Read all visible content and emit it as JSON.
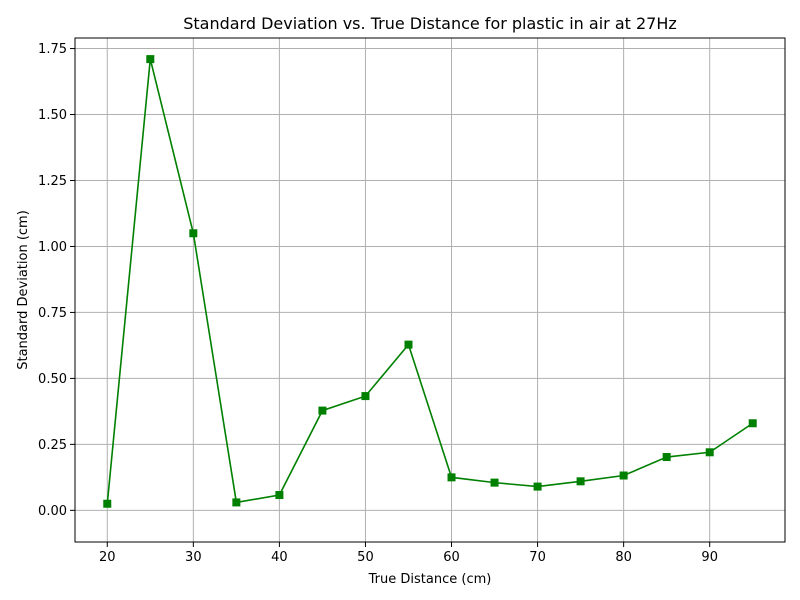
{
  "chart_data": {
    "type": "line",
    "title": "Standard Deviation vs. True Distance for plastic in air at 27Hz",
    "xlabel": "True Distance (cm)",
    "ylabel": "Standard Deviation (cm)",
    "xlim": [
      16.25,
      98.75
    ],
    "ylim": [
      -0.12,
      1.79
    ],
    "xticks": [
      20,
      30,
      40,
      50,
      60,
      70,
      80,
      90
    ],
    "xtick_labels": [
      "20",
      "30",
      "40",
      "50",
      "60",
      "70",
      "80",
      "90"
    ],
    "yticks": [
      0.0,
      0.25,
      0.5,
      0.75,
      1.0,
      1.25,
      1.5,
      1.75
    ],
    "ytick_labels": [
      "0.00",
      "0.25",
      "0.50",
      "0.75",
      "1.00",
      "1.25",
      "1.50",
      "1.75"
    ],
    "grid": true,
    "legend": "none",
    "series": [
      {
        "color": "#008000",
        "marker": "square",
        "x": [
          20,
          25,
          30,
          35,
          40,
          45,
          50,
          55,
          60,
          65,
          70,
          75,
          80,
          85,
          90,
          95
        ],
        "y": [
          0.025,
          1.71,
          1.05,
          0.03,
          0.058,
          0.378,
          0.433,
          0.628,
          0.125,
          0.105,
          0.09,
          0.11,
          0.132,
          0.202,
          0.22,
          0.33
        ]
      }
    ]
  }
}
